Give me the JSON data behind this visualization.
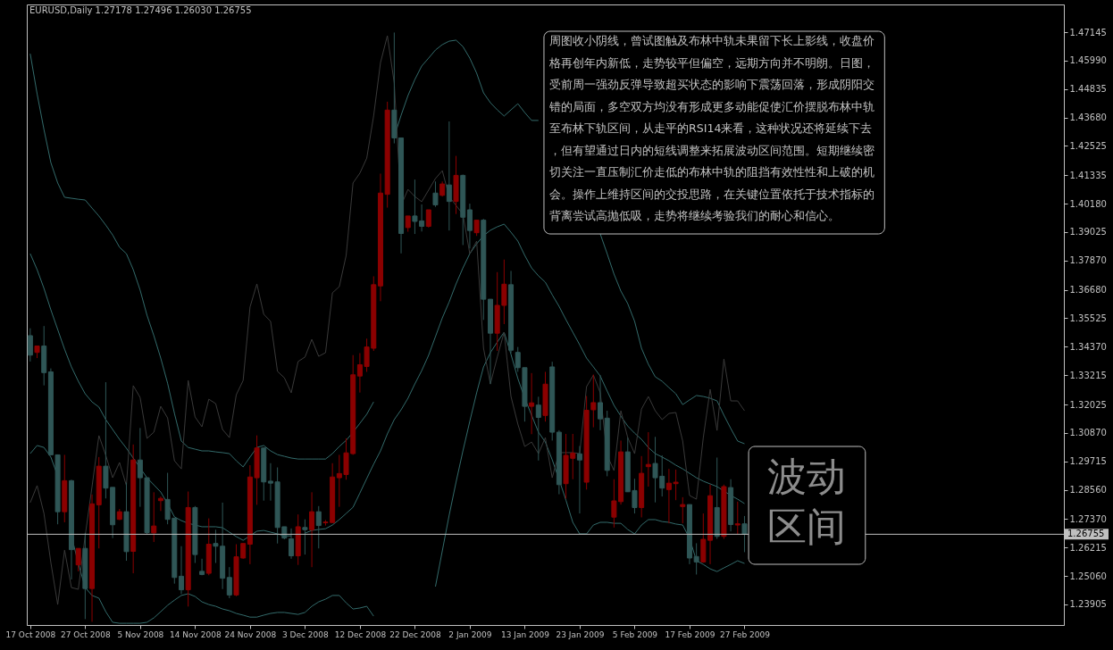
{
  "chart_data": {
    "type": "candlestick",
    "title": "EURUSD,Daily  1.27178 1.27496 1.26030 1.26755",
    "categories": [
      "17 Oct 2008",
      null,
      null,
      null,
      null,
      null,
      null,
      null,
      "27 Oct 2008",
      null,
      null,
      null,
      null,
      null,
      null,
      null,
      "5 Nov 2008",
      null,
      null,
      null,
      null,
      null,
      null,
      null,
      "14 Nov 2008",
      null,
      null,
      null,
      null,
      null,
      null,
      null,
      "24 Nov 2008",
      null,
      null,
      null,
      null,
      null,
      null,
      null,
      "3 Dec 2008",
      null,
      null,
      null,
      null,
      null,
      null,
      null,
      "12 Dec 2008",
      null,
      null,
      null,
      null,
      null,
      null,
      null,
      "22 Dec 2008",
      null,
      null,
      null,
      null,
      null,
      null,
      null,
      "2 Jan 2009",
      null,
      null,
      null,
      null,
      null,
      null,
      null,
      "13 Jan 2009",
      null,
      null,
      null,
      null,
      null,
      null,
      null,
      "23 Jan 2009",
      null,
      null,
      null,
      null,
      null,
      null,
      null,
      "5 Feb 2009",
      null,
      null,
      null,
      null,
      null,
      null,
      null,
      "17 Feb 2009",
      null,
      null,
      null,
      null,
      null,
      null,
      null,
      "27 Feb 2009"
    ],
    "ohlc": [
      [
        1.3482,
        1.3512,
        1.3377,
        1.3403
      ],
      [
        1.3414,
        1.344,
        1.3391,
        1.344
      ],
      [
        1.344,
        1.3521,
        1.328,
        1.3332
      ],
      [
        1.3335,
        1.3349,
        1.2998,
        1.2998
      ],
      [
        1.2998,
        1.2998,
        1.2716,
        1.2767
      ],
      [
        1.2767,
        1.2998,
        1.2724,
        1.2893
      ],
      [
        1.2893,
        1.2897,
        1.2492,
        1.2613
      ],
      [
        1.2551,
        1.2618,
        1.2525,
        1.2618
      ],
      [
        1.2618,
        1.2681,
        1.2331,
        1.2455
      ],
      [
        1.2455,
        1.2837,
        1.232,
        1.2799
      ],
      [
        1.2795,
        1.2989,
        1.2618,
        1.2952
      ],
      [
        1.2952,
        1.3293,
        1.2821,
        1.2863
      ],
      [
        1.2866,
        1.2866,
        1.266,
        1.2714
      ],
      [
        1.2736,
        1.2778,
        1.2733,
        1.2767
      ],
      [
        1.2767,
        1.2885,
        1.2568,
        1.2605
      ],
      [
        1.2606,
        1.304,
        1.2517,
        1.2977
      ],
      [
        1.2977,
        1.3107,
        1.2787,
        1.2905
      ],
      [
        1.2905,
        1.2905,
        1.2677,
        1.2682
      ],
      [
        1.2681,
        1.2846,
        1.2644,
        1.2709
      ],
      [
        1.2812,
        1.2829,
        1.277,
        1.2821
      ],
      [
        1.2817,
        1.2925,
        1.2716,
        1.2736
      ],
      [
        1.2741,
        1.2741,
        1.2475,
        1.25
      ],
      [
        1.2505,
        1.2627,
        1.2433,
        1.245
      ],
      [
        1.245,
        1.2849,
        1.2382,
        1.2784
      ],
      [
        1.2784,
        1.279,
        1.2559,
        1.2593
      ],
      [
        1.2525,
        1.2576,
        1.2509,
        1.2512
      ],
      [
        1.2517,
        1.274,
        1.2509,
        1.2635
      ],
      [
        1.2638,
        1.2694,
        1.2559,
        1.2627
      ],
      [
        1.2627,
        1.2804,
        1.2453,
        1.2497
      ],
      [
        1.25,
        1.2542,
        1.2416,
        1.2429
      ],
      [
        1.2429,
        1.2635,
        1.2424,
        1.2584
      ],
      [
        1.2579,
        1.2638,
        1.2576,
        1.2638
      ],
      [
        1.2635,
        1.2956,
        1.2554,
        1.2908
      ],
      [
        1.2905,
        1.3077,
        1.2795,
        1.3026
      ],
      [
        1.3026,
        1.3026,
        1.2812,
        1.2888
      ],
      [
        1.2891,
        1.2964,
        1.2812,
        1.2883
      ],
      [
        1.2888,
        1.2947,
        1.2638,
        1.2703
      ],
      [
        1.2706,
        1.2706,
        1.2655,
        1.266
      ],
      [
        1.2657,
        1.2699,
        1.2576,
        1.2588
      ],
      [
        1.2588,
        1.2756,
        1.2551,
        1.2706
      ],
      [
        1.2703,
        1.2736,
        1.2593,
        1.2694
      ],
      [
        1.2694,
        1.2846,
        1.2542,
        1.2767
      ],
      [
        1.2767,
        1.279,
        1.2618,
        1.2711
      ],
      [
        1.2722,
        1.2733,
        1.2711,
        1.2725
      ],
      [
        1.2723,
        1.2964,
        1.2723,
        1.2908
      ],
      [
        1.2905,
        1.2998,
        1.2787,
        1.2922
      ],
      [
        1.2918,
        1.3065,
        1.2897,
        1.3006
      ],
      [
        1.3003,
        1.3403,
        1.2998,
        1.3323
      ],
      [
        1.3318,
        1.3411,
        1.3251,
        1.3364
      ],
      [
        1.3357,
        1.347,
        1.3335,
        1.3436
      ],
      [
        1.3431,
        1.3723,
        1.342,
        1.3689
      ],
      [
        1.3684,
        1.414,
        1.3622,
        1.4061
      ],
      [
        1.4056,
        1.4432,
        1.4002,
        1.4398
      ],
      [
        1.4398,
        1.4713,
        1.4263,
        1.4285
      ],
      [
        1.4285,
        1.4285,
        1.3816,
        1.3897
      ],
      [
        1.3921,
        1.3968,
        1.3904,
        1.3968
      ],
      [
        1.3968,
        1.4116,
        1.3895,
        1.3946
      ],
      [
        1.3948,
        1.4015,
        1.3905,
        1.3926
      ],
      [
        1.3926,
        1.3993,
        1.3921,
        1.3993
      ],
      [
        1.4061,
        1.4108,
        1.4005,
        1.4013
      ],
      [
        1.4052,
        1.4108,
        1.4047,
        1.4098
      ],
      [
        1.4094,
        1.4352,
        1.3909,
        1.4027
      ],
      [
        1.4027,
        1.4212,
        1.3976,
        1.4133
      ],
      [
        1.4133,
        1.4136,
        1.385,
        1.3963
      ],
      [
        1.3993,
        1.4018,
        1.3836,
        1.3909
      ],
      [
        1.39,
        1.3951,
        1.3887,
        1.3951
      ],
      [
        1.3951,
        1.3956,
        1.3546,
        1.363
      ],
      [
        1.363,
        1.363,
        1.3285,
        1.3492
      ],
      [
        1.3492,
        1.374,
        1.342,
        1.3605
      ],
      [
        1.3605,
        1.3791,
        1.3529,
        1.3691
      ],
      [
        1.3689,
        1.3745,
        1.3411,
        1.3423
      ],
      [
        1.3414,
        1.3436,
        1.3335,
        1.3352
      ],
      [
        1.3352,
        1.3352,
        1.3133,
        1.3195
      ],
      [
        1.3195,
        1.333,
        1.3082,
        1.3209
      ],
      [
        1.32,
        1.3234,
        1.2975,
        1.315
      ],
      [
        1.3158,
        1.3335,
        1.3133,
        1.3285
      ],
      [
        1.3355,
        1.3376,
        1.3056,
        1.309
      ],
      [
        1.309,
        1.3098,
        1.2838,
        1.2877
      ],
      [
        1.2881,
        1.3083,
        1.282,
        1.2996
      ],
      [
        1.2984,
        1.3083,
        1.2899,
        1.3005
      ],
      [
        1.3002,
        1.3034,
        1.276,
        1.2977
      ],
      [
        1.2887,
        1.3237,
        1.2857,
        1.3179
      ],
      [
        1.3181,
        1.3324,
        1.311,
        1.321
      ],
      [
        1.321,
        1.3322,
        1.3098,
        1.3144
      ],
      [
        1.3147,
        1.3177,
        1.2911,
        1.2935
      ],
      [
        1.2745,
        1.2899,
        1.2703,
        1.2811
      ],
      [
        1.2808,
        1.3056,
        1.2796,
        1.301
      ],
      [
        1.301,
        1.3068,
        1.2848,
        1.2848
      ],
      [
        1.2853,
        1.2901,
        1.276,
        1.2784
      ],
      [
        1.2784,
        1.2993,
        1.2744,
        1.2923
      ],
      [
        1.295,
        1.309,
        1.2869,
        1.2959
      ],
      [
        1.2963,
        1.3071,
        1.2805,
        1.2905
      ],
      [
        1.2911,
        1.2996,
        1.2829,
        1.2863
      ],
      [
        1.2857,
        1.2941,
        1.272,
        1.2883
      ],
      [
        1.2881,
        1.2938,
        1.2814,
        1.2887
      ],
      [
        1.2788,
        1.2826,
        1.272,
        1.2796
      ],
      [
        1.2796,
        1.2796,
        1.2554,
        1.2579
      ],
      [
        1.2585,
        1.2639,
        1.2512,
        1.2563
      ],
      [
        1.2563,
        1.276,
        1.256,
        1.2655
      ],
      [
        1.2651,
        1.2877,
        1.2554,
        1.2832
      ],
      [
        1.2784,
        1.2987,
        1.2657,
        1.2667
      ],
      [
        1.2667,
        1.2877,
        1.2657,
        1.2869
      ],
      [
        1.2865,
        1.2899,
        1.2687,
        1.2715
      ],
      [
        1.2713,
        1.2808,
        1.2675,
        1.2718
      ],
      [
        1.27178,
        1.27496,
        1.2603,
        1.26755
      ]
    ],
    "colors": [
      "#2f5656",
      "#8b0000",
      "#2f5656",
      "#2f5656",
      "#2f5656",
      "#8b0000",
      "#2f5656",
      "#8b0000",
      "#2f5656",
      "#8b0000",
      "#8b0000",
      "#2f5656",
      "#2f5656",
      "#8b0000",
      "#2f5656",
      "#8b0000",
      "#2f5656",
      "#2f5656",
      "#8b0000",
      "#8b0000",
      "#2f5656",
      "#2f5656",
      "#2f5656",
      "#8b0000",
      "#2f5656",
      "#2f5656",
      "#8b0000",
      "#2f5656",
      "#2f5656",
      "#2f5656",
      "#8b0000",
      "#8b0000",
      "#8b0000",
      "#8b0000",
      "#2f5656",
      "#2f5656",
      "#2f5656",
      "#2f5656",
      "#2f5656",
      "#8b0000",
      "#2f5656",
      "#8b0000",
      "#2f5656",
      "#8b0000",
      "#8b0000",
      "#8b0000",
      "#8b0000",
      "#8b0000",
      "#8b0000",
      "#8b0000",
      "#8b0000",
      "#8b0000",
      "#8b0000",
      "#2f5656",
      "#2f5656",
      "#8b0000",
      "#2f5656",
      "#2f5656",
      "#8b0000",
      "#2f5656",
      "#8b0000",
      "#2f5656",
      "#8b0000",
      "#2f5656",
      "#2f5656",
      "#8b0000",
      "#2f5656",
      "#2f5656",
      "#8b0000",
      "#8b0000",
      "#2f5656",
      "#2f5656",
      "#2f5656",
      "#8b0000",
      "#2f5656",
      "#8b0000",
      "#2f5656",
      "#2f5656",
      "#8b0000",
      "#8b0000",
      "#2f5656",
      "#8b0000",
      "#8b0000",
      "#2f5656",
      "#2f5656",
      "#8b0000",
      "#8b0000",
      "#2f5656",
      "#2f5656",
      "#8b0000",
      "#8b0000",
      "#2f5656",
      "#2f5656",
      "#8b0000",
      "#8b0000",
      "#8b0000",
      "#2f5656",
      "#2f5656",
      "#8b0000",
      "#8b0000",
      "#2f5656",
      "#8b0000",
      "#2f5656",
      "#8b0000",
      "#2f5656"
    ],
    "series": [
      {
        "type": "line",
        "color": "#336b6b",
        "values": [
          1.4627,
          1.4464,
          1.4319,
          1.4185,
          1.4102,
          1.4044,
          1.404,
          1.4036,
          1.4033,
          1.4,
          1.3968,
          1.3931,
          1.3891,
          1.3841,
          1.3815,
          1.375,
          1.3667,
          1.3565,
          1.3482,
          1.3391,
          1.3289,
          1.3166,
          1.3054,
          1.3028,
          1.3021,
          1.3014,
          1.3014,
          1.301,
          1.3007,
          1.3003,
          1.2974,
          1.2949,
          1.2989,
          1.3028,
          1.3036,
          1.3014,
          1.2999,
          1.2992,
          1.2985,
          1.2981,
          1.2981,
          1.2981,
          1.2981,
          1.2981,
          1.3003,
          1.3032,
          1.3057,
          1.309,
          1.3126,
          1.3163,
          1.3213,
          null,
          null,
          1.429,
          1.4377,
          1.4457,
          1.4522,
          1.4577,
          1.4609,
          1.4642,
          1.4664,
          1.4678,
          1.4682,
          1.4656,
          1.4609,
          1.4548,
          1.4468,
          1.4428,
          1.4399,
          1.4374,
          1.4399,
          1.4424,
          1.4388,
          1.4356,
          1.4356,
          null,
          null,
          null,
          null,
          null,
          null,
          null,
          null,
          1.3895,
          1.3815,
          1.3732,
          1.3663,
          1.3612,
          1.354,
          1.3431,
          1.3366,
          1.3315,
          1.3297,
          1.3271,
          1.3246,
          1.3202,
          1.3221,
          1.3239,
          1.3235,
          1.3228,
          1.3217,
          1.3159,
          1.3105,
          1.3054,
          1.3043
        ]
      },
      {
        "type": "line",
        "color": "#336b6b",
        "values": [
          1.3815,
          1.375,
          1.3674,
          1.3587,
          1.3507,
          1.3427,
          1.3355,
          1.3297,
          1.3246,
          1.3213,
          1.3192,
          1.3141,
          1.3101,
          1.3061,
          1.3025,
          1.2985,
          1.2945,
          1.2905,
          1.2876,
          1.2847,
          1.28,
          1.2746,
          1.2731,
          1.272,
          1.2713,
          1.2706,
          1.2706,
          1.2706,
          1.2702,
          1.2684,
          1.2666,
          1.2651,
          1.2669,
          1.2688,
          1.2691,
          1.2684,
          1.2677,
          1.2669,
          1.2669,
          null,
          1.268,
          1.2691,
          1.2695,
          1.2698,
          1.2713,
          1.2735,
          1.276,
          1.2785,
          1.2843,
          1.2902,
          1.296,
          1.3014,
          1.3083,
          1.3141,
          1.3181,
          1.3228,
          1.3286,
          1.334,
          1.3402,
          1.3478,
          1.3554,
          1.3619,
          1.3692,
          1.3757,
          1.3815,
          1.3855,
          1.3888,
          1.391,
          1.3924,
          1.3935,
          1.3902,
          1.3866,
          1.3808,
          1.3757,
          1.3725,
          1.3699,
          1.3648,
          1.3601,
          1.3547,
          1.3496,
          1.3445,
          1.3391,
          1.3355,
          1.3318,
          1.3257,
          1.3199,
          1.3155,
          1.3115,
          1.3086,
          1.3061,
          1.3028,
          1.3003,
          1.2989,
          1.2974,
          1.2956,
          1.2941,
          1.2923,
          1.2905,
          1.2891,
          1.288,
          1.2869,
          1.2851,
          1.2833,
          1.2818,
          1.28
        ]
      },
      {
        "type": "line",
        "color": "#336b6b",
        "values": [
          1.3003,
          1.3036,
          1.3028,
          1.2989,
          1.2912,
          null,
          1.2669,
          1.2557,
          1.2459,
          1.2427,
          1.2416,
          1.2361,
          1.2318,
          1.2314,
          1.2314,
          1.2314,
          1.2314,
          1.2318,
          1.2336,
          1.2361,
          1.2387,
          1.2408,
          1.2427,
          1.2434,
          1.2423,
          1.2401,
          1.239,
          1.2383,
          1.2372,
          1.2365,
          1.2354,
          1.2347,
          1.2339,
          1.2339,
          1.2347,
          1.2354,
          1.2358,
          1.2358,
          1.2354,
          1.235,
          1.2358,
          1.2383,
          1.2401,
          1.2412,
          1.2427,
          1.2427,
          1.2397,
          1.2372,
          1.2376,
          1.2383,
          1.2343,
          null,
          null,
          null,
          null,
          null,
          null,
          null,
          null,
          1.2463,
          1.2608,
          1.2753,
          1.2887,
          1.3014,
          1.3134,
          1.325,
          1.3355,
          1.3413,
          1.3456,
          1.3496,
          1.3406,
          1.3308,
          1.3228,
          1.3159,
          1.309,
          1.305,
          1.2978,
          1.2898,
          1.2814,
          1.2724,
          1.2677,
          1.2677,
          1.2713,
          1.2724,
          1.2724,
          1.272,
          1.272,
          1.2695,
          1.2677,
          1.2713,
          1.2735,
          1.2735,
          1.2727,
          1.2724,
          1.2717,
          1.2713,
          1.2659,
          1.2568,
          1.2553,
          1.2535,
          1.2524,
          1.2539,
          1.2553,
          1.2568,
          1.2557
        ]
      },
      {
        "type": "line",
        "color": "#3a3a3a",
        "values": [
          1.2804,
          1.2873,
          1.276,
          1.2561,
          1.239,
          1.2611,
          1.2459,
          1.2452,
          1.2669,
          1.2869,
          1.3076,
          1.2996,
          1.2905,
          1.2967,
          1.2873,
          1.3279,
          1.3231,
          1.3065,
          1.309,
          1.3195,
          1.3148,
          1.2974,
          1.2941,
          1.33,
          1.3152,
          1.3112,
          1.3224,
          1.3206,
          1.3101,
          1.3068,
          1.3242,
          1.33,
          1.3598,
          1.3692,
          1.3569,
          1.354,
          1.3337,
          1.3311,
          1.325,
          1.3377,
          1.3395,
          1.3467,
          1.3398,
          1.3413,
          1.3656,
          1.3681,
          1.3808,
          1.4102,
          1.4142,
          1.4203,
          1.4374,
          1.4591,
          1.47,
          1.4508,
          1.4011,
          1.4076,
          1.4047,
          1.4026,
          1.4073,
          1.412,
          1.4152,
          1.4047,
          1.4011,
          1.3975,
          1.3815,
          1.3866,
          1.3431,
          1.3286,
          1.3395,
          1.3496,
          1.3235,
          1.3123,
          1.3032,
          1.305,
          1.3003,
          1.3068,
          1.2905,
          1.3007,
          1.3007,
          1.3007,
          1.3003,
          1.3275,
          1.3322,
          1.325,
          1.2996,
          1.2934,
          1.3177,
          1.3068,
          1.3003,
          1.3184,
          1.3235,
          1.3177,
          1.3141,
          1.3166,
          1.317,
          1.3054,
          1.2833,
          1.2818,
          1.3068,
          1.3264,
          1.3097,
          1.3387,
          1.3217,
          1.3217,
          1.3177
        ]
      }
    ],
    "ylim": [
      1.2307,
      1.4827
    ],
    "yticks": [
      1.47145,
      {
        "value": 1.4599,
        "label": "1.45990"
      },
      1.44835,
      {
        "value": 1.4368,
        "label": "1.43680"
      },
      1.42525,
      1.41335,
      {
        "value": 1.4018,
        "label": "1.40180"
      },
      1.39025,
      {
        "value": 1.3787,
        "label": "1.37870"
      },
      {
        "value": 1.3668,
        "label": "1.36680"
      },
      1.35525,
      {
        "value": 1.3437,
        "label": "1.34370"
      },
      1.33215,
      1.32025,
      {
        "value": 1.3087,
        "label": "1.30870"
      },
      1.29715,
      {
        "value": 1.2856,
        "label": "1.28560"
      },
      {
        "value": 1.2737,
        "label": "1.27370"
      },
      1.26215,
      {
        "value": 1.2506,
        "label": "1.25060"
      },
      1.23905
    ],
    "grid": false,
    "ref_lines": [
      {
        "axis": "y",
        "value": 1.26755,
        "label": "1.26755",
        "color": "#c0c0c0"
      }
    ],
    "annotations": [
      "周图收小阴线，曾试图触及布林中轨未果留下长上影线，收盘价格再创年内新低，走势较平但偏空，远期方向并不明朗。日图，受前周一强劲反弹导致超买状态的影响下震荡回落，形成阴阳交错的局面，多空双方均没有形成更多动能促使汇价摆脱布林中轨至布林下轨区间，从走平的RSI14来看，这种状况还将延续下去，但有望通过日内的短线调整来拓展波动区间范围。短期继续密切关注一直压制汇价走低的布林中轨的阻挡有效性性和上破的机会。操作上维持区间的交投思路，在关键位置依托于技术指标的背离尝试高抛低吸，走势将继续考验我们的耐心和信心。",
      "波动区间"
    ]
  }
}
